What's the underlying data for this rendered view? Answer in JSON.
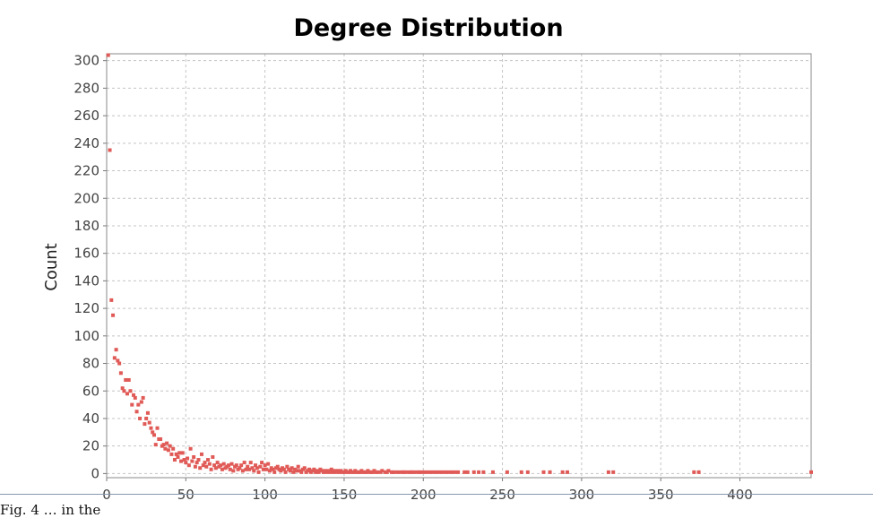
{
  "chart_data": {
    "type": "scatter",
    "title": "Degree Distribution",
    "xlabel": "",
    "ylabel": "Count",
    "xlim": [
      0,
      445
    ],
    "ylim": [
      -3,
      305
    ],
    "x_ticks": [
      0,
      50,
      100,
      150,
      200,
      250,
      300,
      350,
      400
    ],
    "y_ticks": [
      0,
      20,
      40,
      60,
      80,
      100,
      120,
      140,
      160,
      180,
      200,
      220,
      240,
      260,
      280,
      300
    ],
    "grid": true,
    "legend": "none",
    "marker_color": "#e05a57",
    "series": [
      {
        "points": [
          [
            1,
            304
          ],
          [
            2,
            235
          ],
          [
            3,
            126
          ],
          [
            4,
            115
          ],
          [
            5,
            84
          ],
          [
            6,
            90
          ],
          [
            7,
            82
          ],
          [
            8,
            80
          ],
          [
            9,
            73
          ],
          [
            10,
            62
          ],
          [
            11,
            60
          ],
          [
            12,
            68
          ],
          [
            13,
            58
          ],
          [
            14,
            68
          ],
          [
            15,
            60
          ],
          [
            16,
            50
          ],
          [
            17,
            57
          ],
          [
            18,
            55
          ],
          [
            19,
            45
          ],
          [
            20,
            50
          ],
          [
            21,
            40
          ],
          [
            22,
            52
          ],
          [
            23,
            55
          ],
          [
            24,
            36
          ],
          [
            25,
            40
          ],
          [
            26,
            44
          ],
          [
            27,
            37
          ],
          [
            28,
            33
          ],
          [
            29,
            30
          ],
          [
            30,
            28
          ],
          [
            31,
            21
          ],
          [
            32,
            33
          ],
          [
            33,
            25
          ],
          [
            34,
            25
          ],
          [
            35,
            20
          ],
          [
            36,
            21
          ],
          [
            37,
            18
          ],
          [
            38,
            22
          ],
          [
            39,
            17
          ],
          [
            40,
            20
          ],
          [
            41,
            14
          ],
          [
            42,
            18
          ],
          [
            43,
            10
          ],
          [
            44,
            14
          ],
          [
            45,
            12
          ],
          [
            46,
            15
          ],
          [
            47,
            9
          ],
          [
            48,
            15
          ],
          [
            49,
            10
          ],
          [
            50,
            8
          ],
          [
            51,
            11
          ],
          [
            52,
            6
          ],
          [
            53,
            18
          ],
          [
            54,
            9
          ],
          [
            55,
            12
          ],
          [
            56,
            5
          ],
          [
            57,
            8
          ],
          [
            58,
            10
          ],
          [
            59,
            4
          ],
          [
            60,
            14
          ],
          [
            61,
            6
          ],
          [
            62,
            8
          ],
          [
            63,
            5
          ],
          [
            64,
            10
          ],
          [
            65,
            7
          ],
          [
            66,
            3
          ],
          [
            67,
            12
          ],
          [
            68,
            6
          ],
          [
            69,
            4
          ],
          [
            70,
            8
          ],
          [
            71,
            5
          ],
          [
            72,
            6
          ],
          [
            73,
            3
          ],
          [
            74,
            7
          ],
          [
            75,
            4
          ],
          [
            76,
            5
          ],
          [
            77,
            6
          ],
          [
            78,
            3
          ],
          [
            79,
            7
          ],
          [
            80,
            2
          ],
          [
            81,
            5
          ],
          [
            82,
            6
          ],
          [
            83,
            3
          ],
          [
            84,
            4
          ],
          [
            85,
            6
          ],
          [
            86,
            2
          ],
          [
            87,
            8
          ],
          [
            88,
            3
          ],
          [
            89,
            5
          ],
          [
            90,
            3
          ],
          [
            91,
            8
          ],
          [
            92,
            4
          ],
          [
            93,
            2
          ],
          [
            94,
            6
          ],
          [
            95,
            4
          ],
          [
            96,
            1
          ],
          [
            97,
            5
          ],
          [
            98,
            8
          ],
          [
            99,
            3
          ],
          [
            100,
            6
          ],
          [
            101,
            3
          ],
          [
            102,
            7
          ],
          [
            103,
            2
          ],
          [
            104,
            4
          ],
          [
            105,
            3
          ],
          [
            106,
            1
          ],
          [
            107,
            4
          ],
          [
            108,
            5
          ],
          [
            109,
            3
          ],
          [
            110,
            2
          ],
          [
            111,
            4
          ],
          [
            112,
            3
          ],
          [
            113,
            1
          ],
          [
            114,
            5
          ],
          [
            115,
            3
          ],
          [
            116,
            2
          ],
          [
            117,
            4
          ],
          [
            118,
            1
          ],
          [
            119,
            3
          ],
          [
            120,
            2
          ],
          [
            121,
            5
          ],
          [
            122,
            2
          ],
          [
            123,
            1
          ],
          [
            124,
            3
          ],
          [
            125,
            4
          ],
          [
            126,
            1
          ],
          [
            127,
            2
          ],
          [
            128,
            3
          ],
          [
            129,
            1
          ],
          [
            130,
            2
          ],
          [
            131,
            3
          ],
          [
            132,
            1
          ],
          [
            133,
            2
          ],
          [
            134,
            1
          ],
          [
            135,
            3
          ],
          [
            136,
            2
          ],
          [
            137,
            1
          ],
          [
            138,
            2
          ],
          [
            139,
            1
          ],
          [
            140,
            2
          ],
          [
            141,
            1
          ],
          [
            142,
            3
          ],
          [
            143,
            1
          ],
          [
            144,
            2
          ],
          [
            145,
            1
          ],
          [
            146,
            2
          ],
          [
            147,
            1
          ],
          [
            148,
            2
          ],
          [
            149,
            1
          ],
          [
            150,
            1
          ],
          [
            151,
            2
          ],
          [
            152,
            1
          ],
          [
            153,
            1
          ],
          [
            154,
            2
          ],
          [
            155,
            1
          ],
          [
            156,
            1
          ],
          [
            157,
            2
          ],
          [
            158,
            1
          ],
          [
            159,
            1
          ],
          [
            160,
            1
          ],
          [
            161,
            2
          ],
          [
            162,
            1
          ],
          [
            163,
            1
          ],
          [
            164,
            1
          ],
          [
            165,
            2
          ],
          [
            166,
            1
          ],
          [
            167,
            1
          ],
          [
            168,
            1
          ],
          [
            169,
            2
          ],
          [
            170,
            1
          ],
          [
            171,
            1
          ],
          [
            173,
            1
          ],
          [
            174,
            2
          ],
          [
            176,
            1
          ],
          [
            177,
            1
          ],
          [
            178,
            2
          ],
          [
            180,
            1
          ],
          [
            181,
            1
          ],
          [
            183,
            1
          ],
          [
            185,
            1
          ],
          [
            187,
            1
          ],
          [
            188,
            1
          ],
          [
            190,
            1
          ],
          [
            192,
            1
          ],
          [
            193,
            1
          ],
          [
            195,
            1
          ],
          [
            197,
            1
          ],
          [
            198,
            1
          ],
          [
            200,
            1
          ],
          [
            202,
            1
          ],
          [
            204,
            1
          ],
          [
            206,
            1
          ],
          [
            208,
            1
          ],
          [
            210,
            1
          ],
          [
            212,
            1
          ],
          [
            214,
            1
          ],
          [
            216,
            1
          ],
          [
            218,
            1
          ],
          [
            220,
            1
          ],
          [
            222,
            1
          ],
          [
            226,
            1
          ],
          [
            228,
            1
          ],
          [
            232,
            1
          ],
          [
            235,
            1
          ],
          [
            238,
            1
          ],
          [
            244,
            1
          ],
          [
            253,
            1
          ],
          [
            262,
            1
          ],
          [
            266,
            1
          ],
          [
            276,
            1
          ],
          [
            280,
            1
          ],
          [
            288,
            1
          ],
          [
            291,
            1
          ],
          [
            317,
            1
          ],
          [
            320,
            1
          ],
          [
            371,
            1
          ],
          [
            374,
            1
          ],
          [
            445,
            1
          ]
        ]
      }
    ]
  },
  "caption": {
    "text": "Fig. 4 … in the"
  }
}
